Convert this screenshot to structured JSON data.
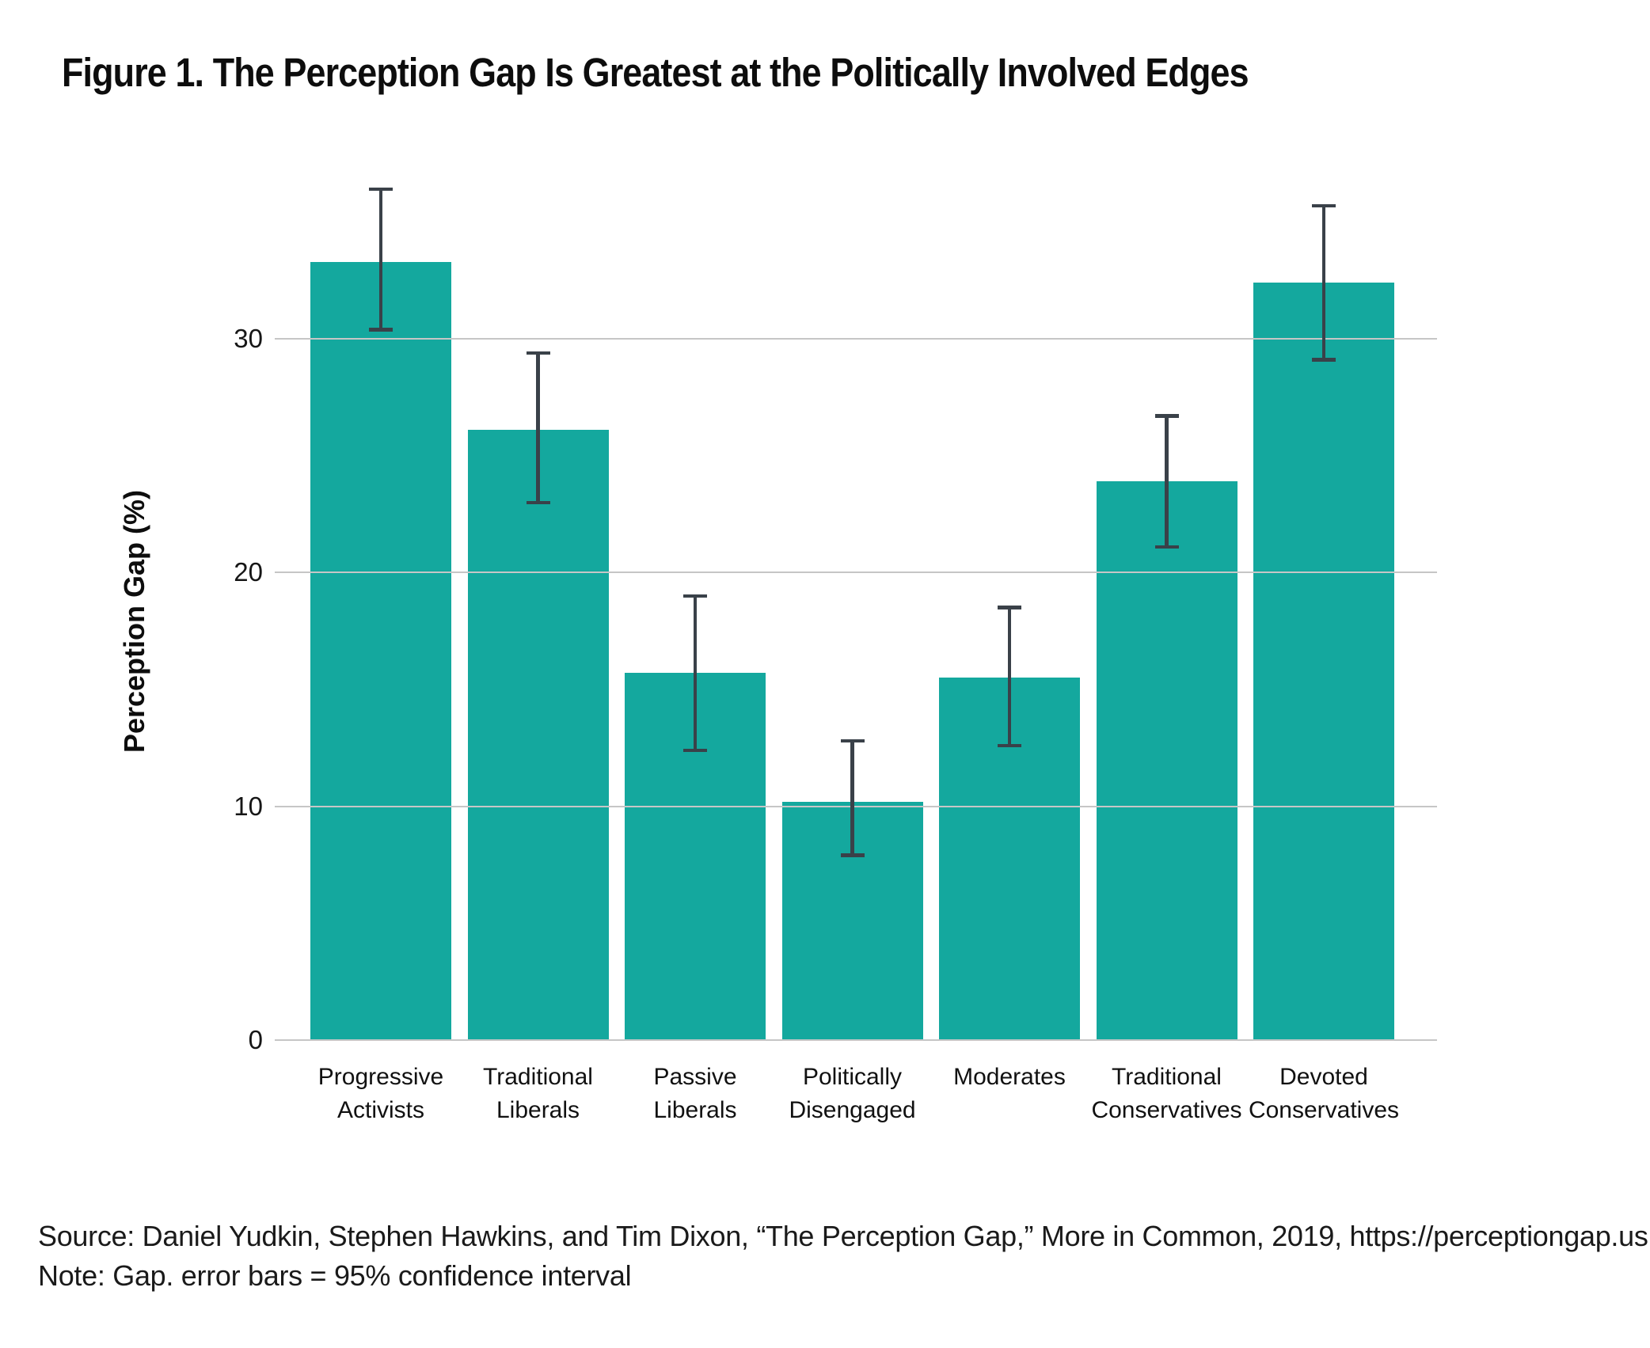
{
  "figure": {
    "title": "Figure 1. The Perception Gap Is Greatest at the Politically Involved Edges",
    "source": "Source: Daniel Yudkin, Stephen Hawkins, and Tim Dixon, “The Perception Gap,” More in Common, 2019, https://perceptiongap.us.",
    "note": "Note: Gap. error bars = 95% confidence interval"
  },
  "chart_data": {
    "type": "bar",
    "title": "Figure 1. The Perception Gap Is Greatest at the Politically Involved Edges",
    "xlabel": "",
    "ylabel": "Perception Gap (%)",
    "ylim": [
      0,
      38
    ],
    "yticks": [
      0,
      10,
      20,
      30
    ],
    "grid": "horizontal",
    "legend_position": "none",
    "error_bars_meaning": "95% confidence interval",
    "colors": {
      "bar": "#14A89E",
      "error_bar": "#3A4149",
      "gridline": "#C6C6C6",
      "text": "#1A1A1A",
      "background": "#FFFFFF"
    },
    "categories": [
      "Progressive Activists",
      "Traditional Liberals",
      "Passive Liberals",
      "Politically Disengaged",
      "Moderates",
      "Traditional Conservatives",
      "Devoted Conservatives"
    ],
    "series": [
      {
        "name": "Perception Gap (%)",
        "values": [
          33.3,
          26.1,
          15.7,
          10.2,
          15.5,
          23.9,
          32.4
        ],
        "ci_low": [
          30.4,
          23.0,
          12.4,
          7.9,
          12.6,
          21.1,
          29.1
        ],
        "ci_high": [
          36.4,
          29.4,
          19.0,
          12.8,
          18.5,
          26.7,
          35.7
        ]
      }
    ]
  }
}
